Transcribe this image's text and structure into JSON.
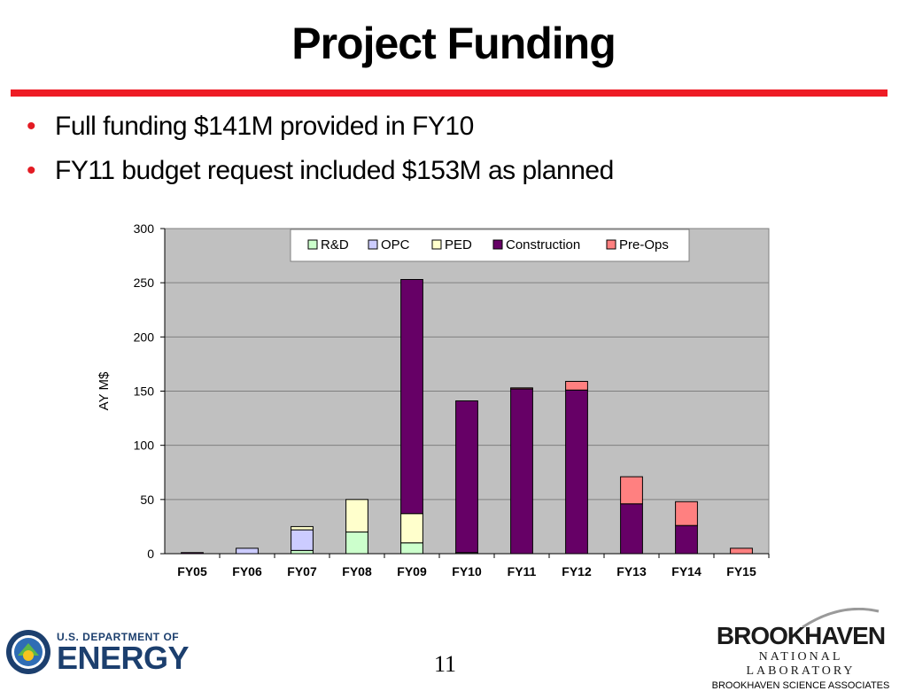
{
  "slide": {
    "title": "Project Funding",
    "bullets": [
      "Full funding $141M provided in FY10",
      "FY11 budget request included $153M as planned"
    ],
    "page_number": "11"
  },
  "footer": {
    "doe_line1": "U.S. DEPARTMENT OF",
    "doe_line2": "ENERGY",
    "bnl_name": "BROOKHAVEN",
    "bnl_sub": "NATIONAL LABORATORY",
    "bnl_assoc": "BROOKHAVEN SCIENCE ASSOCIATES"
  },
  "colors": {
    "title_rule": "#ee1c25",
    "bullet": "#e31b23",
    "plot_bg": "#c0c0c0"
  },
  "chart_data": {
    "type": "bar",
    "stacked": true,
    "categories": [
      "FY05",
      "FY06",
      "FY07",
      "FY08",
      "FY09",
      "FY10",
      "FY11",
      "FY12",
      "FY13",
      "FY14",
      "FY15"
    ],
    "series": [
      {
        "name": "R&D",
        "color": "#ccffcc",
        "values": [
          0,
          0,
          3,
          20,
          10,
          1,
          0,
          0,
          0,
          0,
          0
        ]
      },
      {
        "name": "OPC",
        "color": "#ccccff",
        "values": [
          0,
          5,
          19,
          0,
          0,
          0,
          0,
          0,
          0,
          0,
          0
        ]
      },
      {
        "name": "PED",
        "color": "#ffffcc",
        "values": [
          0,
          0,
          3,
          30,
          27,
          0,
          0,
          0,
          0,
          0,
          0
        ]
      },
      {
        "name": "Construction",
        "color": "#660066",
        "values": [
          1,
          0,
          0,
          0,
          216,
          140,
          152,
          151,
          46,
          26,
          0
        ]
      },
      {
        "name": "Pre-Ops",
        "color": "#ff8080",
        "values": [
          0,
          0,
          0,
          0,
          0,
          0,
          1,
          8,
          25,
          22,
          5
        ]
      }
    ],
    "ylabel": "AY M$",
    "xlabel": "",
    "ylim": [
      0,
      300
    ],
    "yticks": [
      0,
      50,
      100,
      150,
      200,
      250,
      300
    ],
    "grid": true,
    "legend": "top"
  }
}
